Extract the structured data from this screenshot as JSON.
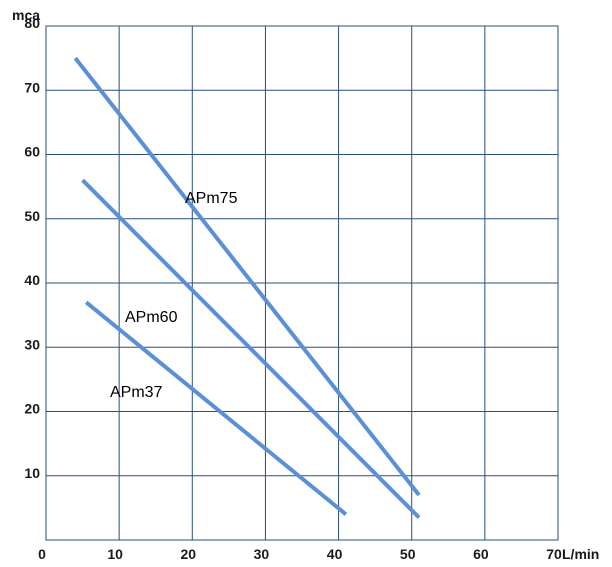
{
  "chart_data": {
    "type": "line",
    "xlabel": "L/min",
    "ylabel": "mca",
    "xlim": [
      0,
      70
    ],
    "ylim": [
      0,
      80
    ],
    "x_ticks": [
      "0",
      "10",
      "20",
      "30",
      "40",
      "50",
      "60",
      "70"
    ],
    "y_ticks": [
      "10",
      "20",
      "30",
      "40",
      "50",
      "60",
      "70",
      "80"
    ],
    "grid": true,
    "line_color": "#5b8fd6",
    "grid_color": "#2b4f7a",
    "series": [
      {
        "name": "APm75",
        "x": [
          4,
          51
        ],
        "y": [
          75,
          7
        ]
      },
      {
        "name": "APm60",
        "x": [
          5,
          51
        ],
        "y": [
          56,
          3.5
        ]
      },
      {
        "name": "APm37",
        "x": [
          5.5,
          41
        ],
        "y": [
          37,
          4
        ]
      }
    ]
  }
}
